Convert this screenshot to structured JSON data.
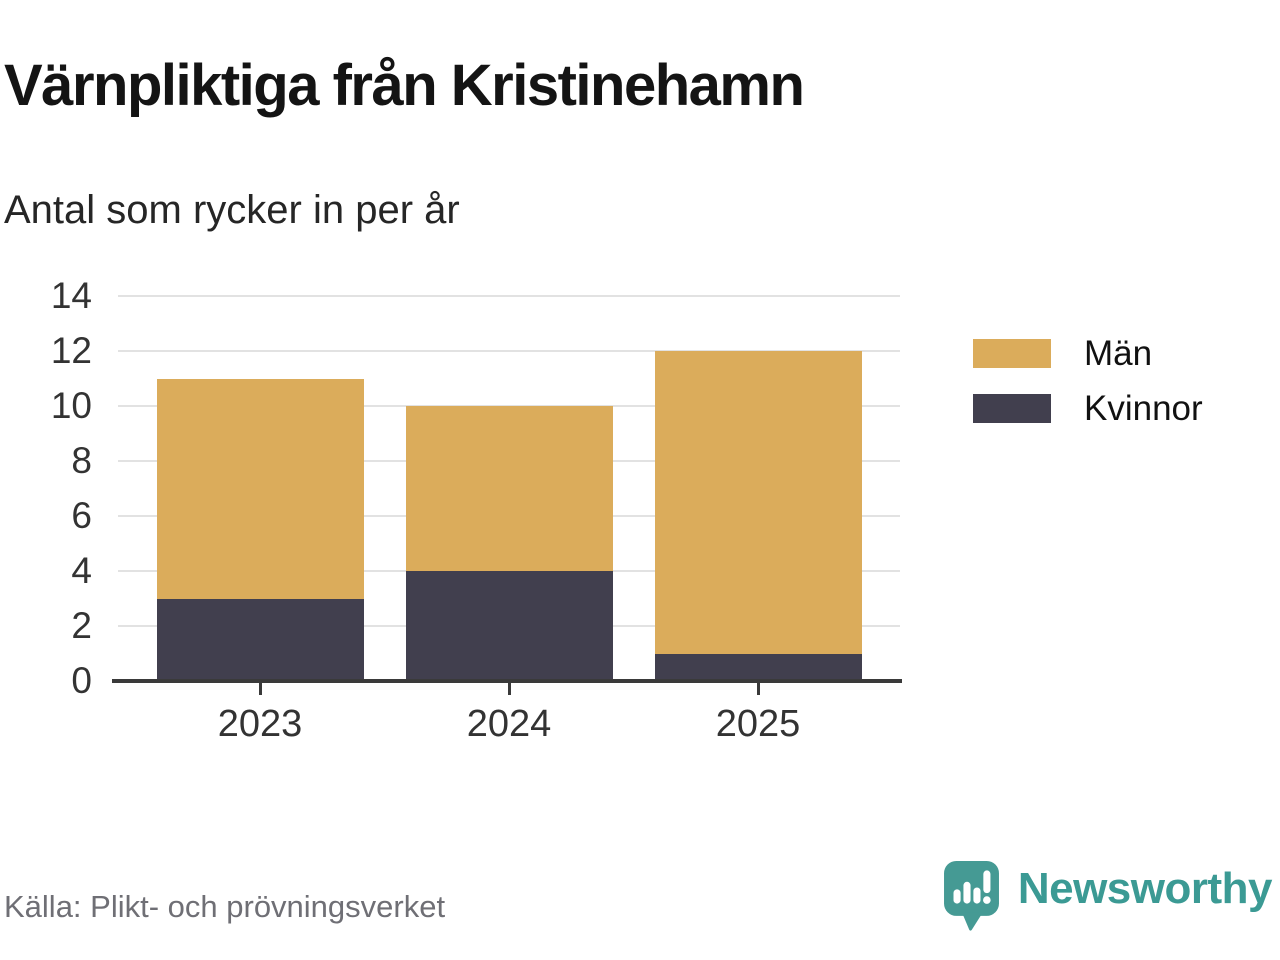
{
  "header": {
    "title": "Värnpliktiga från Kristinehamn",
    "subtitle": "Antal som rycker in per år"
  },
  "footer": {
    "source": "Källa: Plikt- och prövningsverket",
    "brand_name": "Newsworthy",
    "brand_icon": "bar-chart-speech-bubble-icon",
    "brand_color": "#3b9a94"
  },
  "colors": {
    "men": "#dbac5b",
    "women": "#413f4e",
    "grid": "#e2e2e2",
    "axis": "#3a3a3a",
    "tick_text": "#333333",
    "source_text": "#6f6f75"
  },
  "chart_data": {
    "type": "bar",
    "stacked": true,
    "title": "Värnpliktiga från Kristinehamn",
    "subtitle": "Antal som rycker in per år",
    "categories": [
      "2023",
      "2024",
      "2025"
    ],
    "series": [
      {
        "name": "Män",
        "values": [
          8,
          6,
          11
        ],
        "color": "#dbac5b"
      },
      {
        "name": "Kvinnor",
        "values": [
          3,
          4,
          1
        ],
        "color": "#413f4e"
      }
    ],
    "stack_totals": [
      11,
      10,
      12
    ],
    "ylim": [
      0,
      14
    ],
    "yticks": [
      0,
      2,
      4,
      6,
      8,
      10,
      12,
      14
    ],
    "xlabel": "",
    "ylabel": "",
    "grid": true,
    "legend_position": "right",
    "source": "Källa: Plikt- och prövningsverket"
  }
}
